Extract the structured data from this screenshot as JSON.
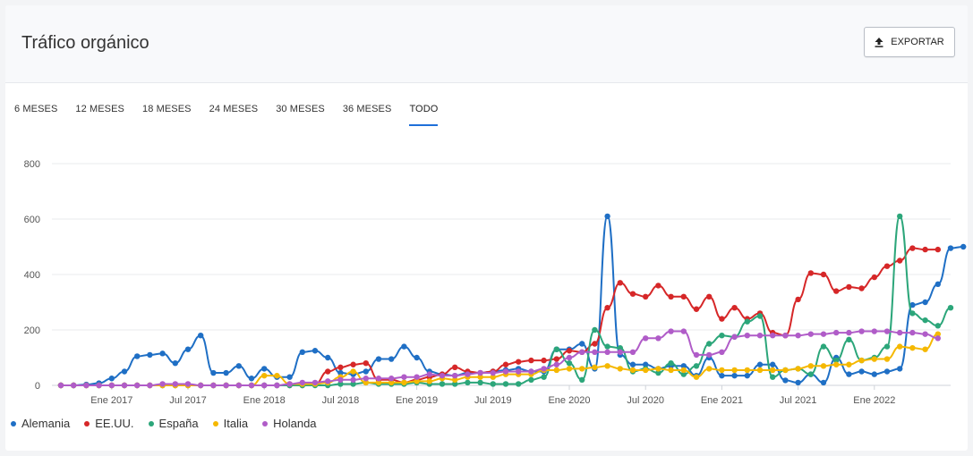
{
  "header": {
    "title": "Tráfico orgánico",
    "export_label": "EXPORTAR"
  },
  "tabs": [
    {
      "label": "6 MESES",
      "active": false
    },
    {
      "label": "12 MESES",
      "active": false
    },
    {
      "label": "18 MESES",
      "active": false
    },
    {
      "label": "24 MESES",
      "active": false
    },
    {
      "label": "30 MESES",
      "active": false
    },
    {
      "label": "36 MESES",
      "active": false
    },
    {
      "label": "TODO",
      "active": true
    }
  ],
  "icons": {
    "export": "upload-icon"
  },
  "chart_data": {
    "type": "line",
    "title": "",
    "xlabel": "",
    "ylabel": "",
    "ylim": [
      0,
      800
    ],
    "yticks": [
      0,
      200,
      400,
      600,
      800
    ],
    "x_start": "2016-09",
    "x_step": "1 month",
    "xticks": [
      {
        "label": "Ene 2017",
        "index": 4
      },
      {
        "label": "Jul 2017",
        "index": 10
      },
      {
        "label": "Ene 2018",
        "index": 16
      },
      {
        "label": "Jul 2018",
        "index": 22
      },
      {
        "label": "Ene 2019",
        "index": 28
      },
      {
        "label": "Jul 2019",
        "index": 34
      },
      {
        "label": "Ene 2020",
        "index": 40
      },
      {
        "label": "Jul 2020",
        "index": 46
      },
      {
        "label": "Ene 2021",
        "index": 52
      },
      {
        "label": "Jul 2021",
        "index": 58
      },
      {
        "label": "Ene 2022",
        "index": 64
      }
    ],
    "grid": true,
    "legend": "bottom-left",
    "series": [
      {
        "name": "Alemania",
        "color": "#1f6fc5",
        "values": [
          0,
          0,
          3,
          8,
          25,
          50,
          105,
          110,
          115,
          80,
          130,
          180,
          45,
          45,
          70,
          25,
          60,
          30,
          30,
          120,
          125,
          100,
          45,
          40,
          50,
          95,
          95,
          140,
          100,
          50,
          40,
          35,
          45,
          45,
          50,
          55,
          60,
          50,
          50,
          130,
          130,
          150,
          60,
          610,
          110,
          75,
          75,
          60,
          70,
          70,
          35,
          100,
          35,
          35,
          35,
          75,
          75,
          18,
          10,
          40,
          10,
          100,
          40,
          50,
          40,
          50,
          60,
          290,
          300,
          365,
          495,
          500
        ]
      },
      {
        "name": "EE.UU.",
        "color": "#d62728",
        "values": [
          0,
          0,
          0,
          0,
          0,
          0,
          0,
          0,
          0,
          0,
          0,
          0,
          0,
          0,
          0,
          0,
          0,
          0,
          0,
          0,
          5,
          50,
          65,
          75,
          80,
          20,
          20,
          10,
          20,
          30,
          40,
          65,
          50,
          45,
          50,
          75,
          85,
          90,
          90,
          95,
          125,
          120,
          150,
          280,
          370,
          330,
          320,
          360,
          320,
          320,
          275,
          320,
          240,
          280,
          240,
          260,
          190,
          180,
          310,
          405,
          400,
          340,
          355,
          350,
          390,
          430,
          450,
          495,
          490,
          490
        ]
      },
      {
        "name": "España",
        "color": "#2ca67a",
        "values": [
          0,
          0,
          0,
          0,
          0,
          0,
          0,
          0,
          0,
          0,
          0,
          0,
          0,
          0,
          0,
          0,
          0,
          0,
          0,
          0,
          0,
          0,
          5,
          5,
          10,
          5,
          5,
          5,
          10,
          5,
          5,
          5,
          10,
          10,
          5,
          5,
          5,
          20,
          30,
          130,
          80,
          20,
          200,
          140,
          135,
          50,
          60,
          45,
          80,
          40,
          70,
          150,
          180,
          175,
          230,
          250,
          30,
          55,
          60,
          40,
          140,
          90,
          165,
          90,
          100,
          140,
          610,
          260,
          235,
          215,
          280
        ]
      },
      {
        "name": "Italia",
        "color": "#f5b800",
        "values": [
          0,
          0,
          0,
          0,
          0,
          0,
          0,
          0,
          0,
          0,
          0,
          0,
          0,
          0,
          0,
          0,
          35,
          35,
          5,
          5,
          5,
          10,
          30,
          50,
          10,
          10,
          10,
          10,
          15,
          15,
          25,
          20,
          30,
          30,
          30,
          40,
          40,
          40,
          55,
          55,
          60,
          60,
          65,
          70,
          60,
          55,
          55,
          60,
          55,
          55,
          30,
          60,
          55,
          55,
          55,
          55,
          55,
          55,
          60,
          70,
          70,
          75,
          75,
          90,
          95,
          95,
          140,
          135,
          130,
          185
        ]
      },
      {
        "name": "Holanda",
        "color": "#b05cc8",
        "values": [
          0,
          0,
          0,
          0,
          0,
          0,
          0,
          0,
          5,
          5,
          5,
          0,
          0,
          0,
          0,
          0,
          0,
          0,
          5,
          10,
          10,
          15,
          20,
          20,
          25,
          25,
          25,
          30,
          30,
          40,
          35,
          35,
          40,
          45,
          45,
          50,
          50,
          50,
          60,
          75,
          100,
          120,
          120,
          120,
          120,
          120,
          170,
          170,
          195,
          195,
          110,
          110,
          120,
          175,
          180,
          180,
          180,
          180,
          180,
          185,
          185,
          190,
          190,
          195,
          195,
          195,
          190,
          190,
          185,
          170
        ]
      }
    ]
  }
}
